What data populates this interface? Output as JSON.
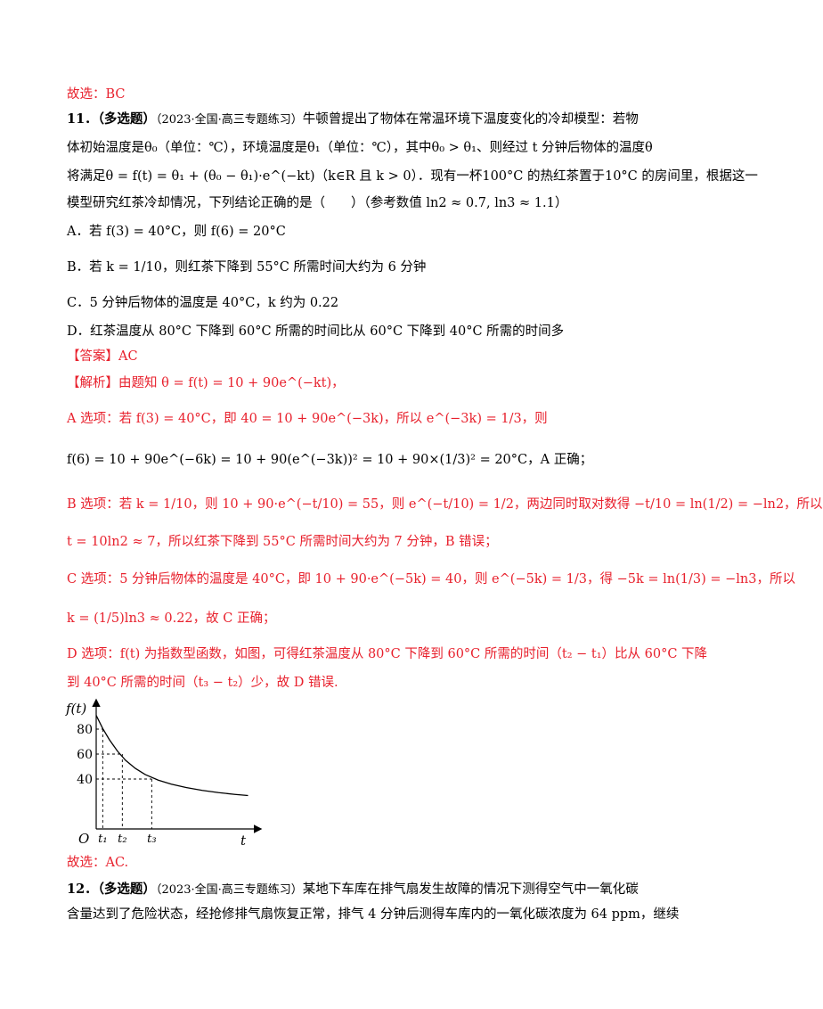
{
  "colors": {
    "answer": "#e8212d",
    "text": "#000000"
  },
  "content": {
    "prev_answer": "故选：BC",
    "q11": {
      "number": "11．",
      "type": "（多选题）",
      "source": "（2023·全国·高三专题练习）",
      "stem_l1": "牛顿曾提出了物体在常温环境下温度变化的冷却模型：若物",
      "stem_l2": "体初始温度是θ₀（单位：℃），环境温度是θ₁（单位：℃），其中θ₀ > θ₁、则经过 t 分钟后物体的温度θ",
      "stem_l3": "将满足θ = f(t) = θ₁ + (θ₀ − θ₁)·e^(−kt)（k∈R 且 k > 0）．现有一杯100°C 的热红茶置于10°C 的房间里，根据这一",
      "stem_l4": "模型研究红茶冷却情况，下列结论正确的是（　　）（参考数值 ln2 ≈ 0.7, ln3 ≈ 1.1）",
      "opt_a": "A．若 f(3) = 40°C，则 f(6) = 20°C",
      "opt_b": "B．若 k = 1/10，则红茶下降到 55°C 所需时间大约为 6 分钟",
      "opt_c": "C．5 分钟后物体的温度是 40°C，k 约为 0.22",
      "opt_d": "D．红茶温度从 80°C 下降到 60°C 所需的时间比从 60°C 下降到 40°C 所需的时间多",
      "answer": "【答案】AC",
      "analysis": "【解析】由题知 θ = f(t) = 10 + 90e^(−kt)，",
      "sol_a1": "A 选项：若 f(3) = 40°C，即 40 = 10 + 90e^(−3k)，所以 e^(−3k) = 1/3，则",
      "sol_a2": "f(6) = 10 + 90e^(−6k) = 10 + 90(e^(−3k))² = 10 + 90×(1/3)² = 20°C，A 正确；",
      "sol_b1": "B 选项：若 k = 1/10，则 10 + 90·e^(−t/10) = 55，则 e^(−t/10) = 1/2，两边同时取对数得 −t/10 = ln(1/2) = −ln2，所以",
      "sol_b2": "t = 10ln2 ≈ 7，所以红茶下降到 55°C 所需时间大约为 7 分钟，B 错误；",
      "sol_c1": "C 选项：5 分钟后物体的温度是 40°C，即 10 + 90·e^(−5k) = 40，则 e^(−5k) = 1/3，得 −5k = ln(1/3) = −ln3，所以",
      "sol_c2": "k = (1/5)ln3 ≈ 0.22，故 C 正确；",
      "sol_d1": "D 选项：f(t) 为指数型函数，如图，可得红茶温度从 80°C 下降到 60°C 所需的时间（t₂ − t₁）比从 60°C 下降",
      "sol_d2": "到 40°C 所需的时间（t₃ − t₂）少，故 D 错误.",
      "final": "故选：AC."
    },
    "q12": {
      "number": "12．",
      "type": "（多选题）",
      "source": "（2023·全国·高三专题练习）",
      "stem_l1": "某地下车库在排气扇发生故障的情况下测得空气中一氧化碳",
      "stem_l2": "含量达到了危险状态，经抢修排气扇恢复正常，排气 4 分钟后测得车库内的一氧化碳浓度为 64 ppm，继续"
    }
  },
  "chart_data": {
    "type": "line",
    "ylabel": "f(t)",
    "xlabel": "t",
    "origin_label": "O",
    "ytick_labels": [
      "80",
      "60",
      "40"
    ],
    "xtick_labels": [
      "t₁",
      "t₂",
      "t₃"
    ],
    "series": [
      {
        "x": [
          0,
          0.4,
          0.8,
          1.3,
          1.8,
          2.4,
          3.0,
          3.8,
          4.6,
          5.5,
          6.5,
          7.5,
          8.5,
          9.3
        ],
        "values": [
          91,
          80.5,
          71.7,
          62.4,
          55,
          48.5,
          43.6,
          39.1,
          35.9,
          33.2,
          30.9,
          29.1,
          27.7,
          26.8
        ]
      }
    ],
    "markers": [
      {
        "x_label": "t₁",
        "x": 0.4,
        "y": 80
      },
      {
        "x_label": "t₂",
        "x": 1.6,
        "y": 60
      },
      {
        "x_label": "t₃",
        "x": 3.4,
        "y": 40
      }
    ],
    "xlim": [
      0,
      9.6
    ],
    "ylim": [
      0,
      100
    ]
  }
}
